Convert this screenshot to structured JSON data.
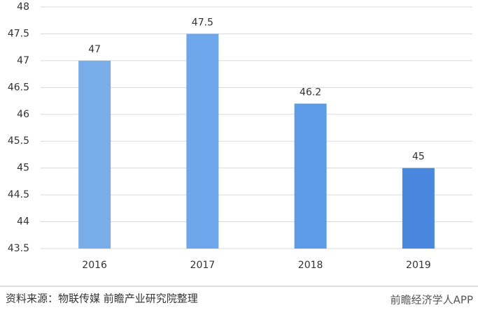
{
  "chart_data": {
    "type": "bar",
    "categories": [
      "2016",
      "2017",
      "2018",
      "2019"
    ],
    "values": [
      47,
      47.5,
      46.2,
      45
    ],
    "colors": [
      "#79ade9",
      "#6da6ea",
      "#5e9be6",
      "#4a88e0"
    ],
    "ylim": [
      43.5,
      48
    ],
    "yticks": [
      43.5,
      44,
      44.5,
      45,
      45.5,
      46,
      46.5,
      47,
      47.5,
      48
    ],
    "grid": true
  },
  "source": "资料来源：物联传媒 前瞻产业研究院整理",
  "brand": "前瞻经济学人APP"
}
